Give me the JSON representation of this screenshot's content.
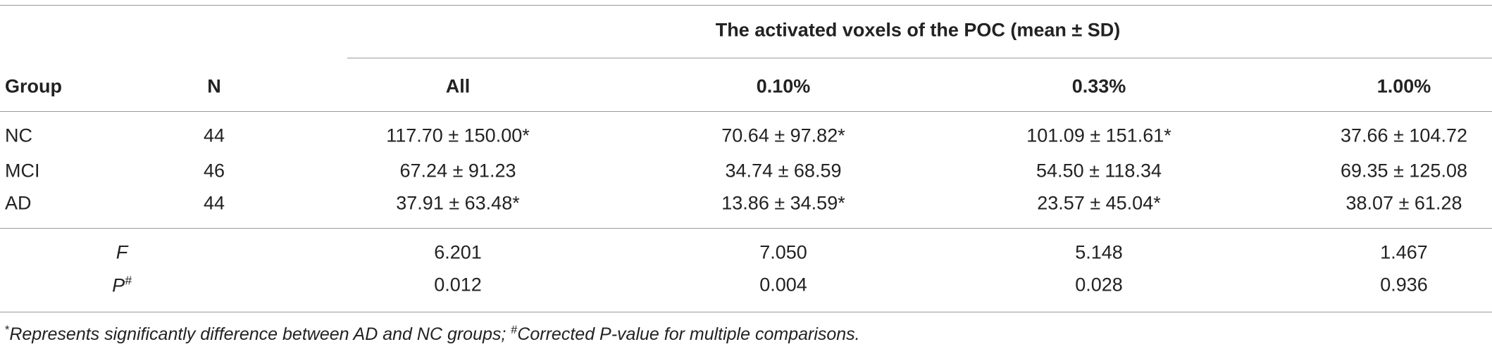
{
  "table": {
    "span_header": "The activated voxels of the POC (mean ± SD)",
    "columns": [
      "Group",
      "N",
      "All",
      "0.10%",
      "0.33%",
      "1.00%"
    ],
    "rows": [
      [
        "NC",
        "44",
        "117.70 ± 150.00*",
        "70.64 ± 97.82*",
        "101.09 ± 151.61*",
        "37.66 ± 104.72"
      ],
      [
        "MCI",
        "46",
        "67.24 ± 91.23",
        "34.74 ± 68.59",
        "54.50 ± 118.34",
        "69.35 ± 125.08"
      ],
      [
        "AD",
        "44",
        "37.91 ± 63.48*",
        "13.86 ± 34.59*",
        "23.57 ± 45.04*",
        "38.07 ± 61.28"
      ]
    ],
    "stats": [
      {
        "label": "F",
        "values": [
          "6.201",
          "7.050",
          "5.148",
          "1.467"
        ]
      },
      {
        "label": "P",
        "label_sup": "#",
        "values": [
          "0.012",
          "0.004",
          "0.028",
          "0.936"
        ]
      }
    ]
  },
  "footnote": [
    {
      "sup": "*",
      "text": "Represents significantly difference between AD and NC groups; "
    },
    {
      "sup": "#",
      "text": "Corrected P-value for multiple comparisons."
    }
  ]
}
